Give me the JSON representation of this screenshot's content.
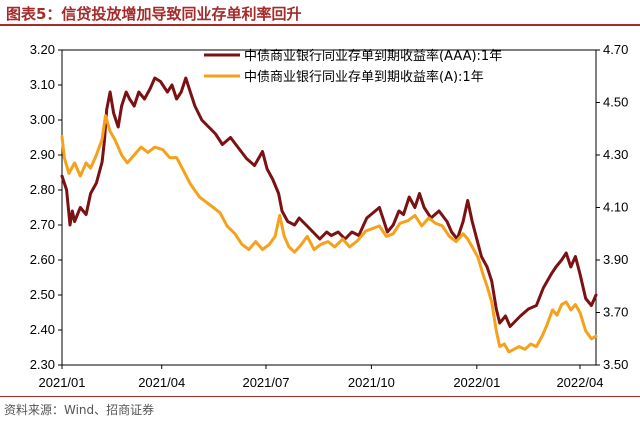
{
  "figure": {
    "title": "图表5：信贷投放增加导致同业存单利率回升",
    "source": "资料来源：Wind、招商证券"
  },
  "colors": {
    "accent": "#a52a2a",
    "series_aaa": "#7b1113",
    "series_a": "#f5a11c"
  },
  "chart_data": {
    "type": "line",
    "title": "",
    "x_ticks": [
      "2021/01",
      "2021/04",
      "2021/07",
      "2021/10",
      "2022/01",
      "2022/04"
    ],
    "x_range": [
      "2021-01-04",
      "2022-04-15"
    ],
    "y_left": {
      "ticks": [
        "3.20",
        "3.10",
        "3.00",
        "2.90",
        "2.80",
        "2.70",
        "2.60",
        "2.50",
        "2.40",
        "2.30"
      ],
      "range": [
        2.3,
        3.2
      ]
    },
    "y_right": {
      "ticks": [
        "4.70",
        "4.50",
        "4.30",
        "4.10",
        "3.90",
        "3.70",
        "3.50"
      ],
      "range": [
        3.5,
        4.7
      ]
    },
    "grid": false,
    "legend_position": "top-right",
    "series": [
      {
        "name": "中债商业银行同业存单到期收益率(AAA):1年",
        "axis": "left",
        "points": [
          [
            "2021-01-04",
            2.84
          ],
          [
            "2021-01-08",
            2.8
          ],
          [
            "2021-01-11",
            2.7
          ],
          [
            "2021-01-13",
            2.74
          ],
          [
            "2021-01-15",
            2.71
          ],
          [
            "2021-01-20",
            2.75
          ],
          [
            "2021-01-25",
            2.73
          ],
          [
            "2021-01-29",
            2.79
          ],
          [
            "2021-02-03",
            2.82
          ],
          [
            "2021-02-08",
            2.88
          ],
          [
            "2021-02-10",
            2.94
          ],
          [
            "2021-02-12",
            3.03
          ],
          [
            "2021-02-15",
            3.08
          ],
          [
            "2021-02-18",
            3.02
          ],
          [
            "2021-02-22",
            2.98
          ],
          [
            "2021-02-25",
            3.04
          ],
          [
            "2021-03-01",
            3.08
          ],
          [
            "2021-03-04",
            3.06
          ],
          [
            "2021-03-08",
            3.04
          ],
          [
            "2021-03-12",
            3.08
          ],
          [
            "2021-03-17",
            3.06
          ],
          [
            "2021-03-22",
            3.09
          ],
          [
            "2021-03-26",
            3.12
          ],
          [
            "2021-03-31",
            3.11
          ],
          [
            "2021-04-06",
            3.08
          ],
          [
            "2021-04-10",
            3.1
          ],
          [
            "2021-04-14",
            3.06
          ],
          [
            "2021-04-18",
            3.08
          ],
          [
            "2021-04-22",
            3.12
          ],
          [
            "2021-04-26",
            3.08
          ],
          [
            "2021-04-30",
            3.04
          ],
          [
            "2021-05-06",
            3.0
          ],
          [
            "2021-05-12",
            2.98
          ],
          [
            "2021-05-18",
            2.96
          ],
          [
            "2021-05-24",
            2.93
          ],
          [
            "2021-05-31",
            2.95
          ],
          [
            "2021-06-07",
            2.92
          ],
          [
            "2021-06-14",
            2.89
          ],
          [
            "2021-06-21",
            2.87
          ],
          [
            "2021-06-28",
            2.91
          ],
          [
            "2021-07-02",
            2.86
          ],
          [
            "2021-07-07",
            2.83
          ],
          [
            "2021-07-12",
            2.79
          ],
          [
            "2021-07-15",
            2.74
          ],
          [
            "2021-07-20",
            2.71
          ],
          [
            "2021-07-26",
            2.7
          ],
          [
            "2021-07-30",
            2.72
          ],
          [
            "2021-08-05",
            2.7
          ],
          [
            "2021-08-11",
            2.68
          ],
          [
            "2021-08-17",
            2.66
          ],
          [
            "2021-08-23",
            2.68
          ],
          [
            "2021-08-27",
            2.67
          ],
          [
            "2021-09-02",
            2.68
          ],
          [
            "2021-09-08",
            2.66
          ],
          [
            "2021-09-14",
            2.68
          ],
          [
            "2021-09-20",
            2.67
          ],
          [
            "2021-09-27",
            2.72
          ],
          [
            "2021-10-08",
            2.75
          ],
          [
            "2021-10-12",
            2.71
          ],
          [
            "2021-10-15",
            2.68
          ],
          [
            "2021-10-20",
            2.7
          ],
          [
            "2021-10-25",
            2.74
          ],
          [
            "2021-10-29",
            2.73
          ],
          [
            "2021-11-03",
            2.78
          ],
          [
            "2021-11-08",
            2.75
          ],
          [
            "2021-11-12",
            2.79
          ],
          [
            "2021-11-16",
            2.75
          ],
          [
            "2021-11-22",
            2.72
          ],
          [
            "2021-11-29",
            2.74
          ],
          [
            "2021-12-06",
            2.71
          ],
          [
            "2021-12-10",
            2.68
          ],
          [
            "2021-12-15",
            2.66
          ],
          [
            "2021-12-20",
            2.71
          ],
          [
            "2021-12-24",
            2.77
          ],
          [
            "2021-12-28",
            2.71
          ],
          [
            "2022-01-05",
            2.61
          ],
          [
            "2022-01-10",
            2.58
          ],
          [
            "2022-01-14",
            2.54
          ],
          [
            "2022-01-18",
            2.46
          ],
          [
            "2022-01-21",
            2.42
          ],
          [
            "2022-01-26",
            2.44
          ],
          [
            "2022-01-30",
            2.41
          ],
          [
            "2022-02-08",
            2.44
          ],
          [
            "2022-02-15",
            2.46
          ],
          [
            "2022-02-22",
            2.47
          ],
          [
            "2022-02-28",
            2.52
          ],
          [
            "2022-03-07",
            2.56
          ],
          [
            "2022-03-11",
            2.58
          ],
          [
            "2022-03-16",
            2.6
          ],
          [
            "2022-03-20",
            2.62
          ],
          [
            "2022-03-24",
            2.58
          ],
          [
            "2022-03-28",
            2.61
          ],
          [
            "2022-04-01",
            2.56
          ],
          [
            "2022-04-06",
            2.49
          ],
          [
            "2022-04-11",
            2.47
          ],
          [
            "2022-04-15",
            2.5
          ]
        ]
      },
      {
        "name": "中债商业银行同业存单到期收益率(A):1年",
        "axis": "right",
        "points": [
          [
            "2021-01-04",
            4.37
          ],
          [
            "2021-01-06",
            4.29
          ],
          [
            "2021-01-10",
            4.23
          ],
          [
            "2021-01-15",
            4.27
          ],
          [
            "2021-01-20",
            4.22
          ],
          [
            "2021-01-25",
            4.27
          ],
          [
            "2021-01-29",
            4.25
          ],
          [
            "2021-02-03",
            4.3
          ],
          [
            "2021-02-08",
            4.36
          ],
          [
            "2021-02-11",
            4.45
          ],
          [
            "2021-02-15",
            4.39
          ],
          [
            "2021-02-19",
            4.36
          ],
          [
            "2021-02-25",
            4.3
          ],
          [
            "2021-03-02",
            4.27
          ],
          [
            "2021-03-08",
            4.3
          ],
          [
            "2021-03-14",
            4.33
          ],
          [
            "2021-03-20",
            4.31
          ],
          [
            "2021-03-26",
            4.33
          ],
          [
            "2021-04-02",
            4.32
          ],
          [
            "2021-04-08",
            4.29
          ],
          [
            "2021-04-14",
            4.29
          ],
          [
            "2021-04-20",
            4.24
          ],
          [
            "2021-04-26",
            4.19
          ],
          [
            "2021-05-04",
            4.14
          ],
          [
            "2021-05-10",
            4.12
          ],
          [
            "2021-05-16",
            4.1
          ],
          [
            "2021-05-22",
            4.08
          ],
          [
            "2021-05-28",
            4.03
          ],
          [
            "2021-06-04",
            4.0
          ],
          [
            "2021-06-10",
            3.96
          ],
          [
            "2021-06-16",
            3.94
          ],
          [
            "2021-06-22",
            3.97
          ],
          [
            "2021-06-28",
            3.94
          ],
          [
            "2021-07-04",
            3.96
          ],
          [
            "2021-07-09",
            3.99
          ],
          [
            "2021-07-13",
            4.07
          ],
          [
            "2021-07-17",
            3.99
          ],
          [
            "2021-07-21",
            3.95
          ],
          [
            "2021-07-26",
            3.93
          ],
          [
            "2021-08-01",
            3.96
          ],
          [
            "2021-08-06",
            3.99
          ],
          [
            "2021-08-12",
            3.94
          ],
          [
            "2021-08-18",
            3.96
          ],
          [
            "2021-08-24",
            3.97
          ],
          [
            "2021-08-30",
            3.95
          ],
          [
            "2021-09-06",
            3.98
          ],
          [
            "2021-09-12",
            3.95
          ],
          [
            "2021-09-18",
            3.97
          ],
          [
            "2021-09-26",
            4.01
          ],
          [
            "2021-10-08",
            4.03
          ],
          [
            "2021-10-14",
            3.99
          ],
          [
            "2021-10-20",
            4.0
          ],
          [
            "2021-10-26",
            4.04
          ],
          [
            "2021-11-02",
            4.05
          ],
          [
            "2021-11-08",
            4.07
          ],
          [
            "2021-11-14",
            4.03
          ],
          [
            "2021-11-20",
            4.06
          ],
          [
            "2021-11-26",
            4.04
          ],
          [
            "2021-12-02",
            4.03
          ],
          [
            "2021-12-08",
            3.99
          ],
          [
            "2021-12-14",
            3.97
          ],
          [
            "2021-12-20",
            4.0
          ],
          [
            "2021-12-24",
            3.98
          ],
          [
            "2021-12-28",
            3.95
          ],
          [
            "2022-01-02",
            3.91
          ],
          [
            "2022-01-06",
            3.85
          ],
          [
            "2022-01-10",
            3.8
          ],
          [
            "2022-01-14",
            3.74
          ],
          [
            "2022-01-18",
            3.63
          ],
          [
            "2022-01-21",
            3.57
          ],
          [
            "2022-01-25",
            3.58
          ],
          [
            "2022-01-29",
            3.55
          ],
          [
            "2022-02-07",
            3.57
          ],
          [
            "2022-02-12",
            3.56
          ],
          [
            "2022-02-17",
            3.58
          ],
          [
            "2022-02-22",
            3.57
          ],
          [
            "2022-02-27",
            3.61
          ],
          [
            "2022-03-03",
            3.65
          ],
          [
            "2022-03-08",
            3.71
          ],
          [
            "2022-03-12",
            3.69
          ],
          [
            "2022-03-16",
            3.73
          ],
          [
            "2022-03-20",
            3.74
          ],
          [
            "2022-03-24",
            3.71
          ],
          [
            "2022-03-28",
            3.73
          ],
          [
            "2022-04-01",
            3.7
          ],
          [
            "2022-04-06",
            3.63
          ],
          [
            "2022-04-11",
            3.6
          ],
          [
            "2022-04-15",
            3.61
          ]
        ]
      }
    ]
  }
}
